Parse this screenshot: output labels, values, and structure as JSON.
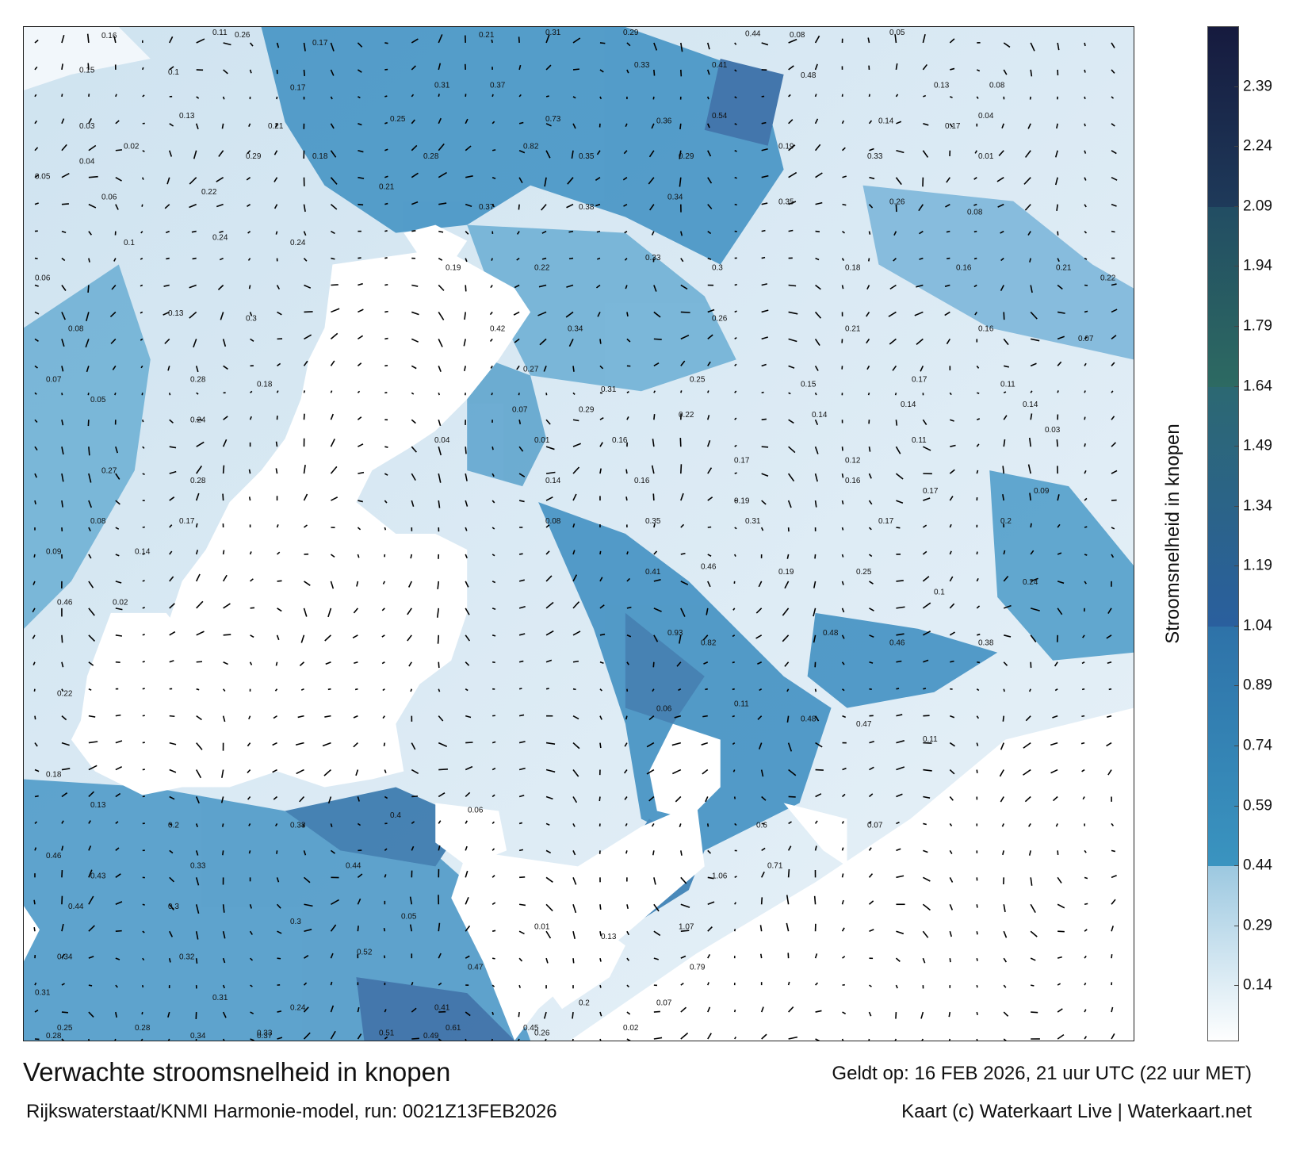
{
  "title": "Verwachte stroomsnelheid in knopen",
  "valid_time": "Geldt op: 16 FEB 2026, 21 uur UTC (22 uur MET)",
  "model_run": "Rijkswaterstaat/KNMI Harmonie-model, run: 0021Z13FEB2026",
  "credit": "Kaart (c) Waterkaart Live | Waterkaart.net",
  "colorbar": {
    "label": "Stroomsnelheid in knopen",
    "ticks": [
      "2.39",
      "2.24",
      "2.09",
      "1.94",
      "1.79",
      "1.64",
      "1.49",
      "1.34",
      "1.19",
      "1.04",
      "0.89",
      "0.74",
      "0.59",
      "0.44",
      "0.29",
      "0.14"
    ],
    "tick_values": [
      2.39,
      2.24,
      2.09,
      1.94,
      1.79,
      1.64,
      1.49,
      1.34,
      1.19,
      1.04,
      0.89,
      0.74,
      0.59,
      0.44,
      0.29,
      0.14
    ],
    "range": [
      0,
      2.54
    ],
    "bands": [
      {
        "from": 0.0,
        "to": 0.44,
        "colors": [
          "#ffffff",
          "#9cc8e0"
        ]
      },
      {
        "from": 0.44,
        "to": 1.04,
        "colors": [
          "#3a94c0",
          "#2e72a8"
        ]
      },
      {
        "from": 1.04,
        "to": 1.64,
        "colors": [
          "#2a5f9e",
          "#2c6872"
        ]
      },
      {
        "from": 1.64,
        "to": 2.09,
        "colors": [
          "#2d6a62",
          "#224d63"
        ]
      },
      {
        "from": 2.09,
        "to": 2.54,
        "colors": [
          "#1e3a5a",
          "#161a3e"
        ]
      }
    ]
  },
  "map": {
    "land_color": "#ffffff",
    "sea_color": "#dbeaf4",
    "current_color": "#3a8cc0",
    "arrow_color": "#000000",
    "values": [
      {
        "x": 0.07,
        "y": 0.011,
        "text": "0.16"
      },
      {
        "x": 0.17,
        "y": 0.008,
        "text": "0.11"
      },
      {
        "x": 0.19,
        "y": 0.01,
        "text": "0.26"
      },
      {
        "x": 0.26,
        "y": 0.018,
        "text": "0.17"
      },
      {
        "x": 0.41,
        "y": 0.01,
        "text": "0.21"
      },
      {
        "x": 0.47,
        "y": 0.004,
        "text": "0.31"
      },
      {
        "x": 0.54,
        "y": 0.003,
        "text": "0.29"
      },
      {
        "x": 0.65,
        "y": 0.009,
        "text": "0.44"
      },
      {
        "x": 0.69,
        "y": 0.01,
        "text": "0.08"
      },
      {
        "x": 0.78,
        "y": 0.008,
        "text": "0.05"
      },
      {
        "x": 0.05,
        "y": 0.045,
        "text": "0.15"
      },
      {
        "x": 0.13,
        "y": 0.047,
        "text": "0.1"
      },
      {
        "x": 0.24,
        "y": 0.062,
        "text": "0.17"
      },
      {
        "x": 0.37,
        "y": 0.06,
        "text": "0.31"
      },
      {
        "x": 0.42,
        "y": 0.06,
        "text": "0.37"
      },
      {
        "x": 0.55,
        "y": 0.04,
        "text": "0.33"
      },
      {
        "x": 0.62,
        "y": 0.04,
        "text": "0.41"
      },
      {
        "x": 0.7,
        "y": 0.05,
        "text": "0.48"
      },
      {
        "x": 0.82,
        "y": 0.06,
        "text": "0.13"
      },
      {
        "x": 0.87,
        "y": 0.06,
        "text": "0.08"
      },
      {
        "x": 0.05,
        "y": 0.1,
        "text": "0.03"
      },
      {
        "x": 0.14,
        "y": 0.09,
        "text": "0.13"
      },
      {
        "x": 0.22,
        "y": 0.1,
        "text": "0.21"
      },
      {
        "x": 0.33,
        "y": 0.093,
        "text": "0.25"
      },
      {
        "x": 0.47,
        "y": 0.093,
        "text": "0.73"
      },
      {
        "x": 0.57,
        "y": 0.095,
        "text": "0.36"
      },
      {
        "x": 0.62,
        "y": 0.09,
        "text": "0.54"
      },
      {
        "x": 0.77,
        "y": 0.095,
        "text": "0.14"
      },
      {
        "x": 0.83,
        "y": 0.1,
        "text": "0.17"
      },
      {
        "x": 0.86,
        "y": 0.09,
        "text": "0.04"
      },
      {
        "x": 0.05,
        "y": 0.135,
        "text": "0.04"
      },
      {
        "x": 0.09,
        "y": 0.12,
        "text": "0.02"
      },
      {
        "x": 0.2,
        "y": 0.13,
        "text": "0.29"
      },
      {
        "x": 0.26,
        "y": 0.13,
        "text": "0.18"
      },
      {
        "x": 0.36,
        "y": 0.13,
        "text": "0.28"
      },
      {
        "x": 0.45,
        "y": 0.12,
        "text": "0.82"
      },
      {
        "x": 0.5,
        "y": 0.13,
        "text": "0.35"
      },
      {
        "x": 0.59,
        "y": 0.13,
        "text": "0.29"
      },
      {
        "x": 0.68,
        "y": 0.12,
        "text": "0.19"
      },
      {
        "x": 0.76,
        "y": 0.13,
        "text": "0.33"
      },
      {
        "x": 0.86,
        "y": 0.13,
        "text": "0.01"
      },
      {
        "x": 0.01,
        "y": 0.15,
        "text": "0.05"
      },
      {
        "x": 0.07,
        "y": 0.17,
        "text": "0.06"
      },
      {
        "x": 0.16,
        "y": 0.165,
        "text": "0.22"
      },
      {
        "x": 0.32,
        "y": 0.16,
        "text": "0.21"
      },
      {
        "x": 0.41,
        "y": 0.18,
        "text": "0.37"
      },
      {
        "x": 0.5,
        "y": 0.18,
        "text": "0.38"
      },
      {
        "x": 0.58,
        "y": 0.17,
        "text": "0.34"
      },
      {
        "x": 0.68,
        "y": 0.175,
        "text": "0.35"
      },
      {
        "x": 0.78,
        "y": 0.175,
        "text": "0.26"
      },
      {
        "x": 0.85,
        "y": 0.185,
        "text": "0.08"
      },
      {
        "x": 0.09,
        "y": 0.215,
        "text": "0.1"
      },
      {
        "x": 0.17,
        "y": 0.21,
        "text": "0.24"
      },
      {
        "x": 0.24,
        "y": 0.215,
        "text": "0.24"
      },
      {
        "x": 0.38,
        "y": 0.24,
        "text": "0.19"
      },
      {
        "x": 0.46,
        "y": 0.24,
        "text": "0.22"
      },
      {
        "x": 0.56,
        "y": 0.23,
        "text": "0.33"
      },
      {
        "x": 0.62,
        "y": 0.24,
        "text": "0.3"
      },
      {
        "x": 0.74,
        "y": 0.24,
        "text": "0.18"
      },
      {
        "x": 0.84,
        "y": 0.24,
        "text": "0.16"
      },
      {
        "x": 0.93,
        "y": 0.24,
        "text": "0.21"
      },
      {
        "x": 0.97,
        "y": 0.25,
        "text": "0.22"
      },
      {
        "x": 0.01,
        "y": 0.25,
        "text": "0.06"
      },
      {
        "x": 0.04,
        "y": 0.3,
        "text": "0.08"
      },
      {
        "x": 0.13,
        "y": 0.285,
        "text": "0.13"
      },
      {
        "x": 0.2,
        "y": 0.29,
        "text": "0.3"
      },
      {
        "x": 0.42,
        "y": 0.3,
        "text": "0.42"
      },
      {
        "x": 0.49,
        "y": 0.3,
        "text": "0.34"
      },
      {
        "x": 0.62,
        "y": 0.29,
        "text": "0.26"
      },
      {
        "x": 0.74,
        "y": 0.3,
        "text": "0.21"
      },
      {
        "x": 0.86,
        "y": 0.3,
        "text": "0.16"
      },
      {
        "x": 0.95,
        "y": 0.31,
        "text": "0.07"
      },
      {
        "x": 0.02,
        "y": 0.35,
        "text": "0.07"
      },
      {
        "x": 0.15,
        "y": 0.35,
        "text": "0.28"
      },
      {
        "x": 0.21,
        "y": 0.355,
        "text": "0.18"
      },
      {
        "x": 0.45,
        "y": 0.34,
        "text": "0.27"
      },
      {
        "x": 0.52,
        "y": 0.36,
        "text": "0.31"
      },
      {
        "x": 0.6,
        "y": 0.35,
        "text": "0.25"
      },
      {
        "x": 0.7,
        "y": 0.355,
        "text": "0.15"
      },
      {
        "x": 0.8,
        "y": 0.35,
        "text": "0.17"
      },
      {
        "x": 0.88,
        "y": 0.355,
        "text": "0.11"
      },
      {
        "x": 0.06,
        "y": 0.37,
        "text": "0.05"
      },
      {
        "x": 0.15,
        "y": 0.39,
        "text": "0.24"
      },
      {
        "x": 0.44,
        "y": 0.38,
        "text": "0.07"
      },
      {
        "x": 0.5,
        "y": 0.38,
        "text": "0.29"
      },
      {
        "x": 0.59,
        "y": 0.385,
        "text": "0.22"
      },
      {
        "x": 0.71,
        "y": 0.385,
        "text": "0.14"
      },
      {
        "x": 0.79,
        "y": 0.375,
        "text": "0.14"
      },
      {
        "x": 0.9,
        "y": 0.375,
        "text": "0.14"
      },
      {
        "x": 0.37,
        "y": 0.41,
        "text": "0.04"
      },
      {
        "x": 0.46,
        "y": 0.41,
        "text": "0.01"
      },
      {
        "x": 0.53,
        "y": 0.41,
        "text": "0.16"
      },
      {
        "x": 0.64,
        "y": 0.43,
        "text": "0.17"
      },
      {
        "x": 0.74,
        "y": 0.43,
        "text": "0.12"
      },
      {
        "x": 0.8,
        "y": 0.41,
        "text": "0.11"
      },
      {
        "x": 0.92,
        "y": 0.4,
        "text": "0.03"
      },
      {
        "x": 0.07,
        "y": 0.44,
        "text": "0.27"
      },
      {
        "x": 0.15,
        "y": 0.45,
        "text": "0.28"
      },
      {
        "x": 0.47,
        "y": 0.45,
        "text": "0.14"
      },
      {
        "x": 0.55,
        "y": 0.45,
        "text": "0.16"
      },
      {
        "x": 0.64,
        "y": 0.47,
        "text": "0.19"
      },
      {
        "x": 0.74,
        "y": 0.45,
        "text": "0.16"
      },
      {
        "x": 0.81,
        "y": 0.46,
        "text": "0.17"
      },
      {
        "x": 0.91,
        "y": 0.46,
        "text": "0.09"
      },
      {
        "x": 0.06,
        "y": 0.49,
        "text": "0.08"
      },
      {
        "x": 0.14,
        "y": 0.49,
        "text": "0.17"
      },
      {
        "x": 0.47,
        "y": 0.49,
        "text": "0.08"
      },
      {
        "x": 0.56,
        "y": 0.49,
        "text": "0.35"
      },
      {
        "x": 0.65,
        "y": 0.49,
        "text": "0.31"
      },
      {
        "x": 0.77,
        "y": 0.49,
        "text": "0.17"
      },
      {
        "x": 0.88,
        "y": 0.49,
        "text": "0.2"
      },
      {
        "x": 0.02,
        "y": 0.52,
        "text": "0.09"
      },
      {
        "x": 0.1,
        "y": 0.52,
        "text": "0.14"
      },
      {
        "x": 0.56,
        "y": 0.54,
        "text": "0.41"
      },
      {
        "x": 0.61,
        "y": 0.535,
        "text": "0.46"
      },
      {
        "x": 0.68,
        "y": 0.54,
        "text": "0.19"
      },
      {
        "x": 0.75,
        "y": 0.54,
        "text": "0.25"
      },
      {
        "x": 0.82,
        "y": 0.56,
        "text": "0.1"
      },
      {
        "x": 0.9,
        "y": 0.55,
        "text": "0.24"
      },
      {
        "x": 0.03,
        "y": 0.57,
        "text": "0.46"
      },
      {
        "x": 0.08,
        "y": 0.57,
        "text": "0.02"
      },
      {
        "x": 0.58,
        "y": 0.6,
        "text": "0.93"
      },
      {
        "x": 0.61,
        "y": 0.61,
        "text": "0.82"
      },
      {
        "x": 0.72,
        "y": 0.6,
        "text": "0.48"
      },
      {
        "x": 0.78,
        "y": 0.61,
        "text": "0.46"
      },
      {
        "x": 0.86,
        "y": 0.61,
        "text": "0.38"
      },
      {
        "x": 0.03,
        "y": 0.66,
        "text": "0.22"
      },
      {
        "x": 0.57,
        "y": 0.675,
        "text": "0.06"
      },
      {
        "x": 0.64,
        "y": 0.67,
        "text": "0.11"
      },
      {
        "x": 0.7,
        "y": 0.685,
        "text": "0.48"
      },
      {
        "x": 0.75,
        "y": 0.69,
        "text": "0.47"
      },
      {
        "x": 0.81,
        "y": 0.705,
        "text": "0.11"
      },
      {
        "x": 0.02,
        "y": 0.74,
        "text": "0.18"
      },
      {
        "x": 0.06,
        "y": 0.77,
        "text": "0.13"
      },
      {
        "x": 0.13,
        "y": 0.79,
        "text": "0.2"
      },
      {
        "x": 0.24,
        "y": 0.79,
        "text": "0.38"
      },
      {
        "x": 0.33,
        "y": 0.78,
        "text": "0.4"
      },
      {
        "x": 0.4,
        "y": 0.775,
        "text": "0.06"
      },
      {
        "x": 0.66,
        "y": 0.79,
        "text": "0.6"
      },
      {
        "x": 0.76,
        "y": 0.79,
        "text": "0.07"
      },
      {
        "x": 0.02,
        "y": 0.82,
        "text": "0.46"
      },
      {
        "x": 0.06,
        "y": 0.84,
        "text": "0.43"
      },
      {
        "x": 0.15,
        "y": 0.83,
        "text": "0.33"
      },
      {
        "x": 0.29,
        "y": 0.83,
        "text": "0.44"
      },
      {
        "x": 0.62,
        "y": 0.84,
        "text": "1.06"
      },
      {
        "x": 0.67,
        "y": 0.83,
        "text": "0.71"
      },
      {
        "x": 0.04,
        "y": 0.87,
        "text": "0.44"
      },
      {
        "x": 0.13,
        "y": 0.87,
        "text": "0.3"
      },
      {
        "x": 0.24,
        "y": 0.885,
        "text": "0.3"
      },
      {
        "x": 0.34,
        "y": 0.88,
        "text": "0.05"
      },
      {
        "x": 0.46,
        "y": 0.89,
        "text": "0.01"
      },
      {
        "x": 0.52,
        "y": 0.9,
        "text": "0.13"
      },
      {
        "x": 0.59,
        "y": 0.89,
        "text": "1.07"
      },
      {
        "x": 0.03,
        "y": 0.92,
        "text": "0.34"
      },
      {
        "x": 0.14,
        "y": 0.92,
        "text": "0.32"
      },
      {
        "x": 0.3,
        "y": 0.915,
        "text": "0.52"
      },
      {
        "x": 0.4,
        "y": 0.93,
        "text": "0.47"
      },
      {
        "x": 0.6,
        "y": 0.93,
        "text": "0.79"
      },
      {
        "x": 0.01,
        "y": 0.955,
        "text": "0.31"
      },
      {
        "x": 0.17,
        "y": 0.96,
        "text": "0.31"
      },
      {
        "x": 0.24,
        "y": 0.97,
        "text": "0.24"
      },
      {
        "x": 0.37,
        "y": 0.97,
        "text": "0.41"
      },
      {
        "x": 0.5,
        "y": 0.965,
        "text": "0.2"
      },
      {
        "x": 0.57,
        "y": 0.965,
        "text": "0.07"
      },
      {
        "x": 0.03,
        "y": 0.99,
        "text": "0.25"
      },
      {
        "x": 0.1,
        "y": 0.99,
        "text": "0.28"
      },
      {
        "x": 0.21,
        "y": 0.995,
        "text": "0.33"
      },
      {
        "x": 0.32,
        "y": 0.995,
        "text": "0.51"
      },
      {
        "x": 0.38,
        "y": 0.99,
        "text": "0.61"
      },
      {
        "x": 0.45,
        "y": 0.99,
        "text": "0.45"
      },
      {
        "x": 0.54,
        "y": 0.99,
        "text": "0.02"
      },
      {
        "x": 0.02,
        "y": 1.0,
        "text": "0.28"
      },
      {
        "x": 0.15,
        "y": 1.0,
        "text": "0.34"
      },
      {
        "x": 0.21,
        "y": 1.0,
        "text": "0.37"
      },
      {
        "x": 0.36,
        "y": 1.0,
        "text": "0.49"
      },
      {
        "x": 0.46,
        "y": 0.995,
        "text": "0.26"
      }
    ]
  }
}
